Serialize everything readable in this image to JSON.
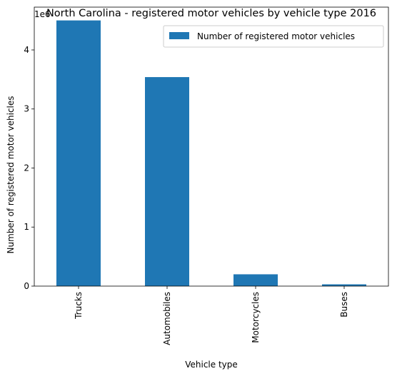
{
  "chart_data": {
    "type": "bar",
    "title": "North Carolina - registered motor vehicles by vehicle type 2016",
    "xlabel": "Vehicle type",
    "ylabel": "Number of registered motor vehicles",
    "categories": [
      "Trucks",
      "Automobiles",
      "Motorcycles",
      "Buses"
    ],
    "series": [
      {
        "name": "Number of registered motor vehicles",
        "values": [
          4500000,
          3540000,
          200000,
          30000
        ],
        "color": "#1f77b4"
      }
    ],
    "ylim": [
      0,
      4725000
    ],
    "yticks": [
      0,
      1000000,
      2000000,
      3000000,
      4000000
    ],
    "ytick_labels": [
      "0",
      "1",
      "2",
      "3",
      "4"
    ],
    "y_offset_text": "1e6",
    "grid": false,
    "legend_position": "top-right"
  }
}
